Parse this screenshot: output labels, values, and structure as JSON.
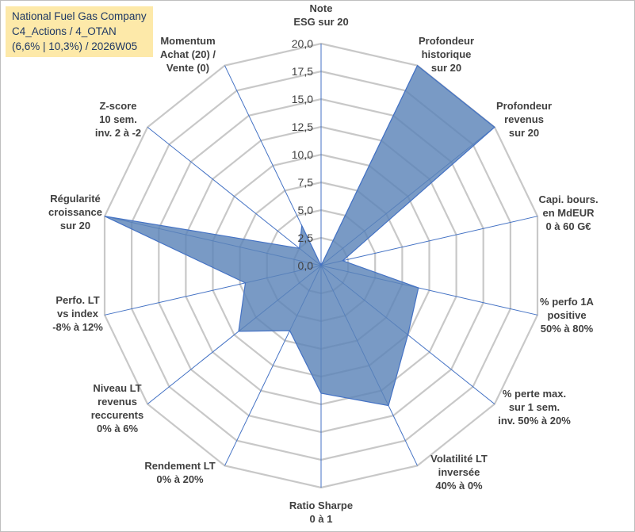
{
  "title_box": {
    "line1": "National Fuel Gas Company",
    "line2": "C4_Actions / 4_OTAN",
    "line3": "(6,6% | 10,3%) / 2026W05"
  },
  "colors": {
    "fill": "#5b84b8",
    "line": "#4472c4",
    "grid": "#c8c8c8",
    "title_bg": "#fde9a9"
  },
  "chart_data": {
    "type": "radar",
    "title": "National Fuel Gas Company C4_Actions / 4_OTAN (6,6% | 10,3%) / 2026W05",
    "rmin": 0,
    "rmax": 20,
    "step": 2.5,
    "tick_labels": [
      "0,0",
      "2,5",
      "5,0",
      "7,5",
      "10,0",
      "12,5",
      "15,0",
      "17,5",
      "20,0"
    ],
    "axes": [
      {
        "label": [
          "Note",
          "ESG sur 20"
        ],
        "value": 0
      },
      {
        "label": [
          "Profondeur",
          "historique",
          "sur 20"
        ],
        "value": 20
      },
      {
        "label": [
          "Profondeur",
          "revenus",
          "sur 20"
        ],
        "value": 20
      },
      {
        "label": [
          "Capi. bours.",
          "en MdEUR",
          "0 à 60 G€"
        ],
        "value": 2
      },
      {
        "label": [
          "% perfo 1A",
          "positive",
          "50% à 80%"
        ],
        "value": 9
      },
      {
        "label": [
          "% perte max.",
          "sur 1 sem.",
          "inv. 50% à 20%"
        ],
        "value": 10
      },
      {
        "label": [
          "Volatilité LT",
          "inversée",
          "40% à 0%"
        ],
        "value": 14
      },
      {
        "label": [
          "Ratio Sharpe",
          "0 à 1"
        ],
        "value": 11.5
      },
      {
        "label": [
          "Rendement LT",
          "0% à 20%"
        ],
        "value": 6.5
      },
      {
        "label": [
          "Niveau LT",
          "revenus",
          "reccurents",
          "0% à 6%"
        ],
        "value": 9.5
      },
      {
        "label": [
          "Perfo. LT",
          "vs index",
          "-8% à 12%"
        ],
        "value": 7
      },
      {
        "label": [
          "Régularité",
          "croissance",
          "sur 20"
        ],
        "value": 20
      },
      {
        "label": [
          "Z-score",
          "10 sem.",
          "inv. 2 à -2"
        ],
        "value": 2.5
      },
      {
        "label": [
          "Momentum",
          "Achat (20) /",
          "Vente (0)"
        ],
        "value": 4
      }
    ]
  }
}
